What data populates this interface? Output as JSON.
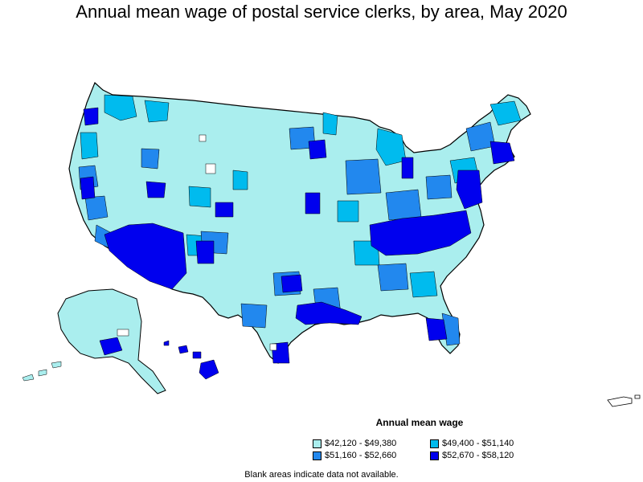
{
  "title": "Annual mean wage of postal service clerks, by area, May 2020",
  "legend": {
    "title": "Annual mean wage",
    "items": [
      {
        "label": "$42,120 - $49,380",
        "color": "#aaeeee"
      },
      {
        "label": "$49,400 - $51,140",
        "color": "#00bbee"
      },
      {
        "label": "$51,160 - $52,660",
        "color": "#2288ee"
      },
      {
        "label": "$52,670 - $58,120",
        "color": "#0000ee"
      }
    ]
  },
  "note": "Blank areas indicate data not available.",
  "colors": {
    "low": "#aaeeee",
    "mid_low": "#00bbee",
    "mid_high": "#2288ee",
    "high": "#0000ee",
    "blank": "#ffffff",
    "border": "#000000"
  }
}
